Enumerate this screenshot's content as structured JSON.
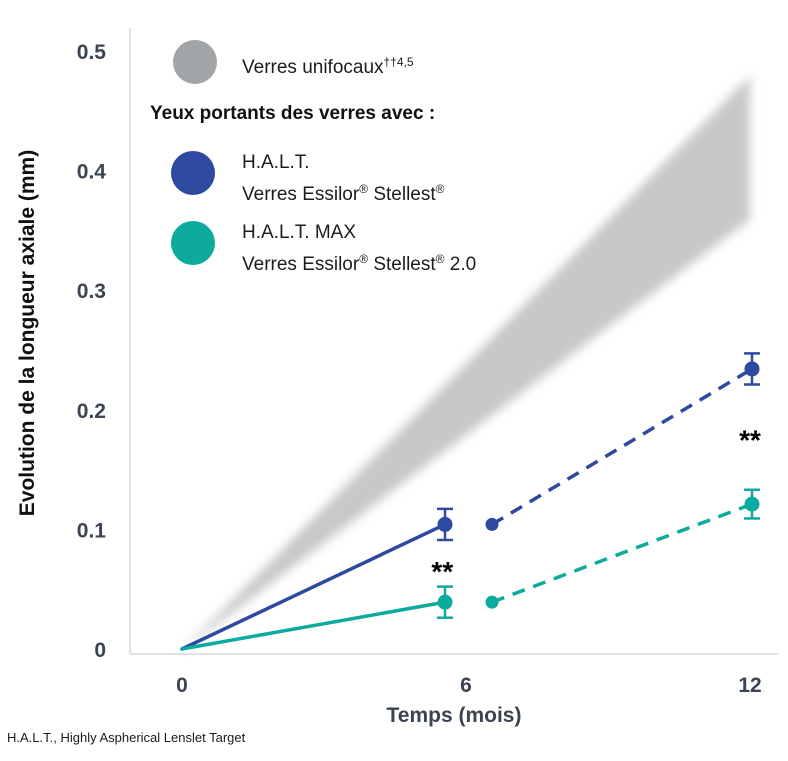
{
  "legend": {
    "unifocal_label": "Verres unifocaux",
    "unifocal_sup": "††4,5",
    "unifocal_color": "#a2a5a8",
    "header": "Yeux portants des verres avec :",
    "entries": [
      {
        "name_line": "H.A.L.T.",
        "product_prefix": "Verres Essilor",
        "reg1": "®",
        "product_mid": " Stellest",
        "reg2": "®",
        "product_suffix": "",
        "color": "#2e49a0"
      },
      {
        "name_line": "H.A.L.T. MAX",
        "product_prefix": "Verres Essilor",
        "reg1": "®",
        "product_mid": " Stellest",
        "reg2": "®",
        "product_suffix": " 2.0",
        "color": "#0cab9e"
      }
    ]
  },
  "footer": "H.A.L.T., Highly Aspherical Lenslet Target",
  "chart_data": {
    "type": "line",
    "title": "",
    "xlabel": "Temps (mois)",
    "ylabel": "Evolution de la longueur axiale (mm)",
    "xlim": [
      0,
      12
    ],
    "ylim": [
      0,
      0.5
    ],
    "xticks": [
      0,
      6,
      12
    ],
    "yticks": [
      0,
      0.1,
      0.2,
      0.3,
      0.4,
      0.5
    ],
    "ytick_labels": [
      "0",
      "0.1",
      "0.2",
      "0.3",
      "0.4",
      "0.5"
    ],
    "grid": false,
    "legend_position": "top-left",
    "band": {
      "name": "Verres unifocaux††4,5",
      "color": "#c7c8ca",
      "x": [
        0,
        12
      ],
      "lower": [
        0,
        0.36
      ],
      "upper": [
        0,
        0.48
      ]
    },
    "series": [
      {
        "name": "H.A.L.T. Verres Essilor® Stellest®",
        "color": "#2e49a0",
        "linestyle": [
          "solid",
          "dashed"
        ],
        "x": [
          0,
          6,
          12
        ],
        "values": [
          0,
          0.105,
          0.235
        ],
        "errors": [
          0,
          0.013,
          0.013
        ]
      },
      {
        "name": "H.A.L.T. MAX Verres Essilor® Stellest® 2.0",
        "color": "#0cab9e",
        "linestyle": [
          "solid",
          "dashed"
        ],
        "x": [
          0,
          6,
          12
        ],
        "values": [
          0,
          0.04,
          0.122
        ],
        "errors": [
          0,
          0.013,
          0.012
        ]
      }
    ],
    "annotations": [
      {
        "text": "**",
        "x": 5.5,
        "y": 0.072
      },
      {
        "text": "**",
        "x": 12,
        "y": 0.182
      }
    ]
  }
}
